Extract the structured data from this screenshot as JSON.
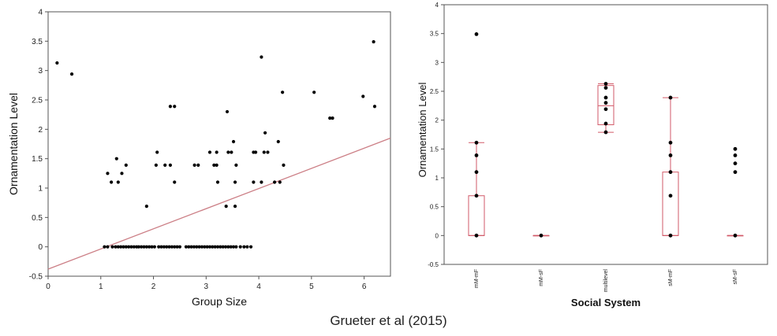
{
  "caption": "Grueter et al (2015)",
  "colors": {
    "point": "#000000",
    "line": "#cc7f86",
    "box": "#d25a68",
    "axis": "#555555"
  },
  "chart_data": [
    {
      "type": "scatter",
      "xlabel": "Group Size",
      "ylabel": "Ornamentation Level",
      "xlim": [
        0,
        6.5
      ],
      "ylim": [
        -0.5,
        4
      ],
      "xticks": [
        0,
        1,
        2,
        3,
        4,
        5,
        6
      ],
      "yticks": [
        -0.5,
        0,
        0.5,
        1,
        1.5,
        2,
        2.5,
        3,
        3.5,
        4
      ],
      "trendline": {
        "x": [
          0,
          6.5
        ],
        "y": [
          -0.38,
          1.85
        ]
      },
      "points": [
        [
          0.17,
          3.13
        ],
        [
          0.45,
          2.94
        ],
        [
          6.18,
          3.49
        ],
        [
          4.05,
          3.23
        ],
        [
          5.98,
          2.56
        ],
        [
          6.2,
          2.39
        ],
        [
          4.45,
          2.63
        ],
        [
          5.05,
          2.63
        ],
        [
          3.4,
          2.3
        ],
        [
          2.32,
          2.39
        ],
        [
          2.4,
          2.39
        ],
        [
          5.35,
          2.19
        ],
        [
          5.4,
          2.19
        ],
        [
          4.12,
          1.94
        ],
        [
          3.52,
          1.79
        ],
        [
          4.37,
          1.79
        ],
        [
          1.3,
          1.5
        ],
        [
          2.07,
          1.61
        ],
        [
          3.07,
          1.61
        ],
        [
          3.2,
          1.61
        ],
        [
          3.42,
          1.61
        ],
        [
          3.48,
          1.61
        ],
        [
          3.9,
          1.61
        ],
        [
          3.94,
          1.61
        ],
        [
          4.1,
          1.61
        ],
        [
          4.17,
          1.61
        ],
        [
          1.4,
          1.25
        ],
        [
          1.48,
          1.39
        ],
        [
          2.05,
          1.39
        ],
        [
          2.22,
          1.39
        ],
        [
          2.32,
          1.39
        ],
        [
          2.78,
          1.39
        ],
        [
          2.85,
          1.39
        ],
        [
          3.15,
          1.39
        ],
        [
          3.2,
          1.39
        ],
        [
          3.57,
          1.39
        ],
        [
          4.47,
          1.39
        ],
        [
          1.13,
          1.25
        ],
        [
          1.2,
          1.1
        ],
        [
          1.33,
          1.1
        ],
        [
          2.4,
          1.1
        ],
        [
          3.22,
          1.1
        ],
        [
          3.55,
          1.1
        ],
        [
          3.9,
          1.1
        ],
        [
          4.05,
          1.1
        ],
        [
          4.3,
          1.1
        ],
        [
          4.4,
          1.1
        ],
        [
          1.87,
          0.69
        ],
        [
          3.38,
          0.69
        ],
        [
          3.55,
          0.69
        ],
        [
          1.07,
          0
        ],
        [
          1.13,
          0
        ],
        [
          1.22,
          0
        ],
        [
          1.28,
          0
        ],
        [
          1.33,
          0
        ],
        [
          1.38,
          0
        ],
        [
          1.43,
          0
        ],
        [
          1.48,
          0
        ],
        [
          1.53,
          0
        ],
        [
          1.58,
          0
        ],
        [
          1.63,
          0
        ],
        [
          1.68,
          0
        ],
        [
          1.72,
          0
        ],
        [
          1.77,
          0
        ],
        [
          1.82,
          0
        ],
        [
          1.87,
          0
        ],
        [
          1.92,
          0
        ],
        [
          1.97,
          0
        ],
        [
          2.02,
          0
        ],
        [
          2.1,
          0
        ],
        [
          2.15,
          0
        ],
        [
          2.2,
          0
        ],
        [
          2.25,
          0
        ],
        [
          2.3,
          0
        ],
        [
          2.35,
          0
        ],
        [
          2.4,
          0
        ],
        [
          2.45,
          0
        ],
        [
          2.5,
          0
        ],
        [
          2.62,
          0
        ],
        [
          2.67,
          0
        ],
        [
          2.72,
          0
        ],
        [
          2.77,
          0
        ],
        [
          2.82,
          0
        ],
        [
          2.87,
          0
        ],
        [
          2.92,
          0
        ],
        [
          2.97,
          0
        ],
        [
          3.02,
          0
        ],
        [
          3.07,
          0
        ],
        [
          3.12,
          0
        ],
        [
          3.17,
          0
        ],
        [
          3.22,
          0
        ],
        [
          3.27,
          0
        ],
        [
          3.32,
          0
        ],
        [
          3.37,
          0
        ],
        [
          3.42,
          0
        ],
        [
          3.47,
          0
        ],
        [
          3.52,
          0
        ],
        [
          3.57,
          0
        ],
        [
          3.65,
          0
        ],
        [
          3.72,
          0
        ],
        [
          3.78,
          0
        ],
        [
          3.85,
          0
        ]
      ]
    },
    {
      "type": "box",
      "xlabel": "Social System",
      "ylabel": "Ornamentation Level",
      "ylim": [
        -0.5,
        4
      ],
      "yticks": [
        -0.5,
        0,
        0.5,
        1,
        1.5,
        2,
        2.5,
        3,
        3.5,
        4
      ],
      "categories": [
        "mM-mF",
        "mM-sF",
        "multilevel",
        "sM-mF",
        "sM-sF"
      ],
      "boxes": [
        {
          "min": 0,
          "q1": 0,
          "median": 0,
          "q3": 0.69,
          "max": 1.61,
          "points": [
            3.49,
            1.61,
            1.39,
            1.1,
            0.69,
            0
          ]
        },
        {
          "min": 0,
          "q1": 0,
          "median": 0,
          "q3": 0,
          "max": 0,
          "points": [
            0
          ]
        },
        {
          "min": 1.79,
          "q1": 1.92,
          "median": 2.25,
          "q3": 2.6,
          "max": 2.63,
          "points": [
            2.63,
            2.56,
            2.39,
            2.3,
            2.19,
            1.94,
            1.79
          ]
        },
        {
          "min": 0,
          "q1": 0,
          "median": 0,
          "q3": 1.1,
          "max": 2.39,
          "points": [
            2.39,
            1.61,
            1.39,
            1.1,
            0.69,
            0
          ]
        },
        {
          "min": 0,
          "q1": 0,
          "median": 0,
          "q3": 0,
          "max": 0,
          "points": [
            1.5,
            1.39,
            1.25,
            1.1,
            0
          ]
        }
      ]
    }
  ]
}
